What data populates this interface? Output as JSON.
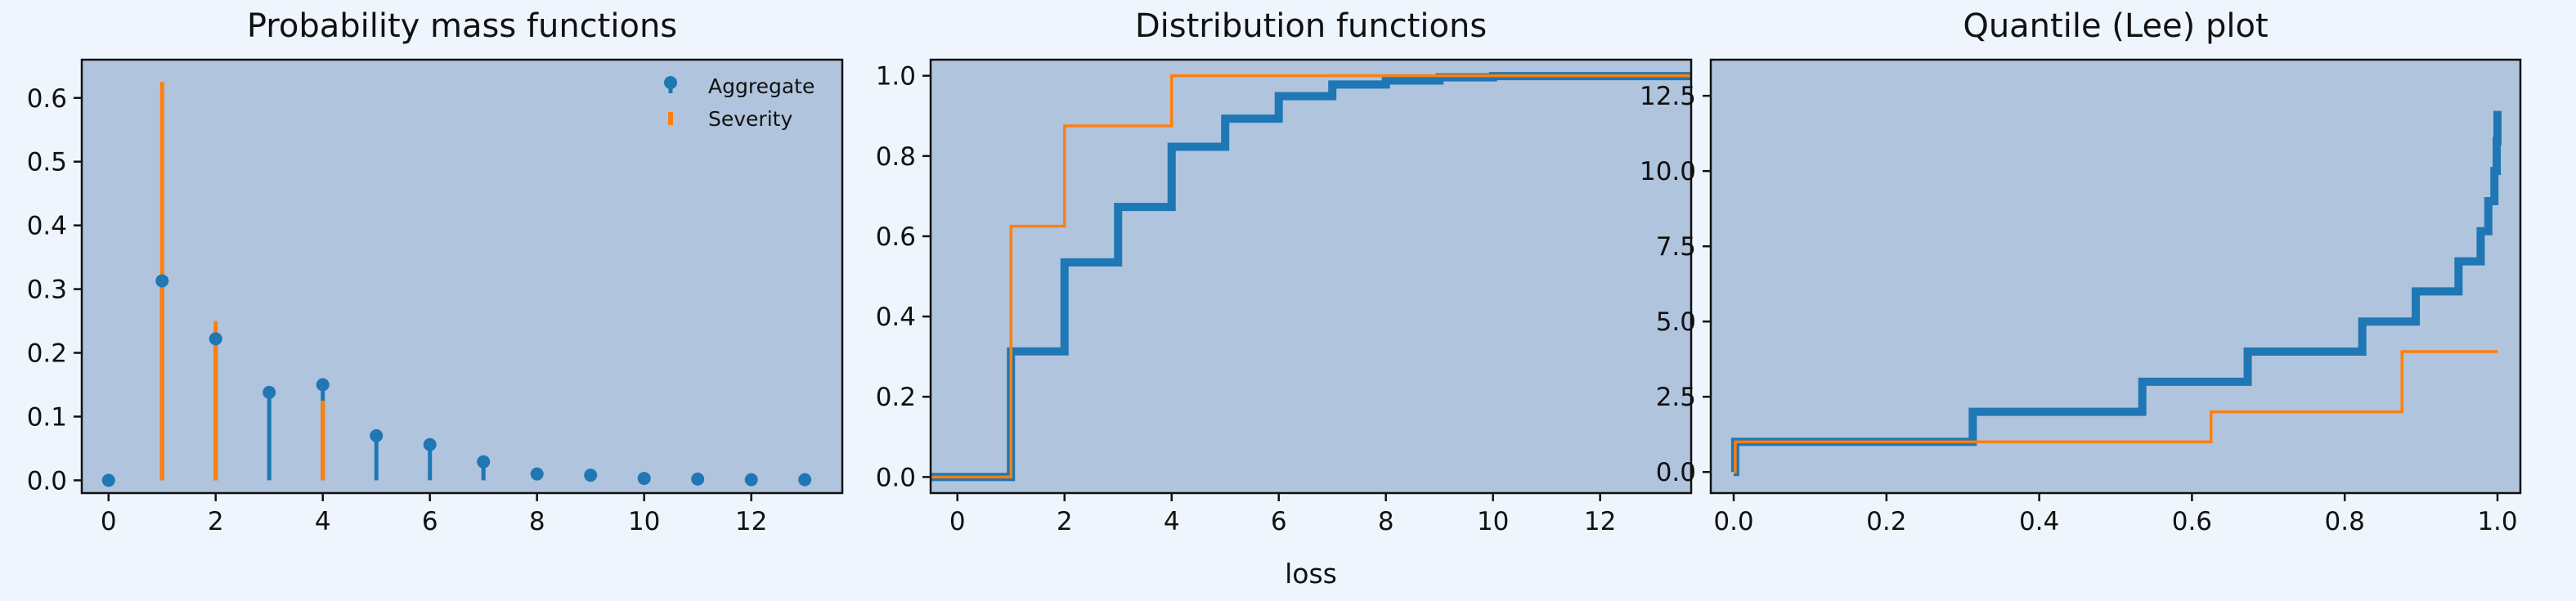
{
  "figure": {
    "xlabel": "loss"
  },
  "chart_data": [
    {
      "type": "stem",
      "title": "Probability mass functions",
      "xlim": [
        -0.5,
        13.7
      ],
      "ylim": [
        -0.02,
        0.66
      ],
      "xticks": [
        0,
        2,
        4,
        6,
        8,
        10,
        12
      ],
      "yticks": [
        0.0,
        0.1,
        0.2,
        0.3,
        0.4,
        0.5,
        0.6
      ],
      "grid": false,
      "legend": {
        "position": "top-right",
        "entries": [
          "Aggregate",
          "Severity"
        ]
      },
      "series": [
        {
          "name": "Aggregate",
          "style": "stem-marker",
          "color": "#1f77b4",
          "x": [
            -1,
            0,
            1,
            2,
            3,
            4,
            5,
            6,
            7,
            8,
            9,
            10,
            11,
            12,
            13
          ],
          "y": [
            0.0,
            0.0,
            0.313,
            0.222,
            0.138,
            0.15,
            0.07,
            0.056,
            0.029,
            0.01,
            0.008,
            0.003,
            0.002,
            0.001,
            0.001
          ]
        },
        {
          "name": "Severity",
          "style": "stem",
          "color": "#ff7f0e",
          "x": [
            1,
            2,
            4
          ],
          "y": [
            0.625,
            0.25,
            0.125
          ]
        }
      ]
    },
    {
      "type": "step",
      "title": "Distribution functions",
      "xlim": [
        -0.5,
        13.7
      ],
      "ylim": [
        -0.04,
        1.04
      ],
      "xticks": [
        0,
        2,
        4,
        6,
        8,
        10,
        12
      ],
      "yticks": [
        0.0,
        0.2,
        0.4,
        0.6,
        0.8,
        1.0
      ],
      "grid": false,
      "series": [
        {
          "name": "Aggregate",
          "color": "#1f77b4",
          "linewidth": "thick",
          "x": [
            -1,
            1,
            2,
            3,
            4,
            5,
            6,
            7,
            8,
            9,
            10,
            13.7
          ],
          "y": [
            0.0,
            0.313,
            0.535,
            0.673,
            0.823,
            0.893,
            0.949,
            0.978,
            0.988,
            0.996,
            0.999,
            1.0
          ]
        },
        {
          "name": "Severity",
          "color": "#ff7f0e",
          "linewidth": "thin",
          "x": [
            -1,
            1,
            2,
            4,
            13.7
          ],
          "y": [
            0.0,
            0.625,
            0.875,
            1.0,
            1.0
          ]
        }
      ]
    },
    {
      "type": "step",
      "title": "Quantile (Lee) plot",
      "xlim": [
        -0.03,
        1.03
      ],
      "ylim": [
        -0.7,
        13.7
      ],
      "xticks": [
        0.0,
        0.2,
        0.4,
        0.6,
        0.8,
        1.0
      ],
      "yticks": [
        0.0,
        2.5,
        5.0,
        7.5,
        10.0,
        12.5
      ],
      "grid": false,
      "series": [
        {
          "name": "Aggregate",
          "color": "#1f77b4",
          "linewidth": "thick",
          "x": [
            0.0,
            0.002,
            0.313,
            0.535,
            0.673,
            0.823,
            0.893,
            0.949,
            0.978,
            0.988,
            0.996,
            0.999,
            1.0
          ],
          "y": [
            0,
            1,
            2,
            3,
            4,
            5,
            6,
            7,
            8,
            9,
            10,
            11,
            12
          ]
        },
        {
          "name": "Severity",
          "color": "#ff7f0e",
          "linewidth": "thin",
          "x": [
            0.0,
            0.002,
            0.625,
            0.875,
            1.0
          ],
          "y": [
            0,
            1,
            2,
            4,
            4
          ]
        }
      ]
    }
  ]
}
